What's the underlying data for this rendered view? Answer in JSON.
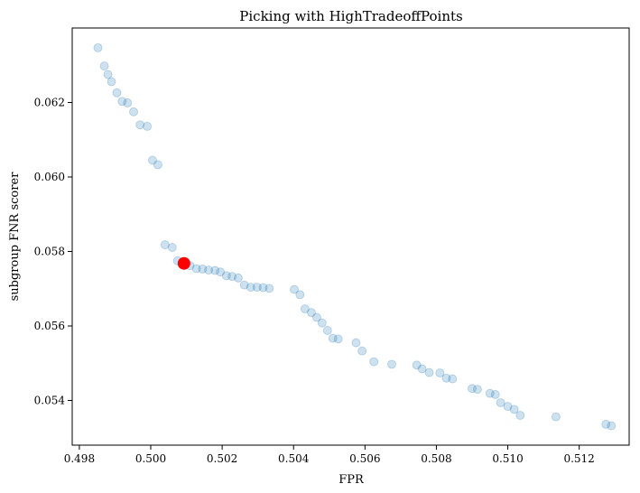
{
  "chart_data": {
    "type": "scatter",
    "title": "Picking with HighTradeoffPoints",
    "xlabel": "FPR",
    "ylabel": "subgroup FNR scorer",
    "xlim": [
      0.4978,
      0.5134
    ],
    "ylim": [
      0.0528,
      0.064
    ],
    "xticks": [
      0.498,
      0.5,
      0.502,
      0.504,
      0.506,
      0.508,
      0.51,
      0.512
    ],
    "xtick_labels": [
      "0.498",
      "0.500",
      "0.502",
      "0.504",
      "0.506",
      "0.508",
      "0.510",
      "0.512"
    ],
    "yticks": [
      0.054,
      0.056,
      0.058,
      0.06,
      0.062
    ],
    "ytick_labels": [
      "0.054",
      "0.056",
      "0.058",
      "0.060",
      "0.062"
    ],
    "grid": false,
    "colors": {
      "points": "#1f77b4",
      "highlight": "#ff0000"
    },
    "series": [
      {
        "x": [
          0.49852,
          0.4987,
          0.4988,
          0.4989,
          0.49905,
          0.4992,
          0.49935,
          0.49952,
          0.4997,
          0.4999,
          0.50005,
          0.5002,
          0.5004,
          0.5006,
          0.50075,
          0.5009,
          0.5011,
          0.50128,
          0.50145,
          0.50162,
          0.5018,
          0.50195,
          0.50212,
          0.50228,
          0.50245,
          0.50262,
          0.5028,
          0.50298,
          0.50315,
          0.50332,
          0.50402,
          0.50418,
          0.50432,
          0.5045,
          0.50465,
          0.5048,
          0.50495,
          0.5051,
          0.50525,
          0.50575,
          0.50592,
          0.50625,
          0.50675,
          0.50745,
          0.5076,
          0.5078,
          0.5081,
          0.50828,
          0.50845,
          0.509,
          0.50915,
          0.5095,
          0.50965,
          0.5098,
          0.51,
          0.51018,
          0.51035,
          0.51135,
          0.51275,
          0.5129
        ],
        "y": [
          0.06347,
          0.06298,
          0.06275,
          0.06256,
          0.06226,
          0.06203,
          0.06199,
          0.06175,
          0.0614,
          0.06136,
          0.06045,
          0.06033,
          0.05818,
          0.05811,
          0.05775,
          0.05765,
          0.05762,
          0.05754,
          0.05753,
          0.0575,
          0.05749,
          0.05745,
          0.05735,
          0.05733,
          0.05729,
          0.0571,
          0.05704,
          0.05704,
          0.05703,
          0.05701,
          0.05698,
          0.05684,
          0.05646,
          0.05636,
          0.05623,
          0.05608,
          0.05588,
          0.05567,
          0.05565,
          0.05555,
          0.05533,
          0.05504,
          0.05497,
          0.05495,
          0.05485,
          0.05475,
          0.05474,
          0.0546,
          0.05458,
          0.05432,
          0.0543,
          0.05419,
          0.05416,
          0.05394,
          0.05384,
          0.05376,
          0.0536,
          0.05356,
          0.05336,
          0.05332
        ]
      }
    ],
    "highlight": {
      "x": 0.50093,
      "y": 0.05768
    }
  }
}
